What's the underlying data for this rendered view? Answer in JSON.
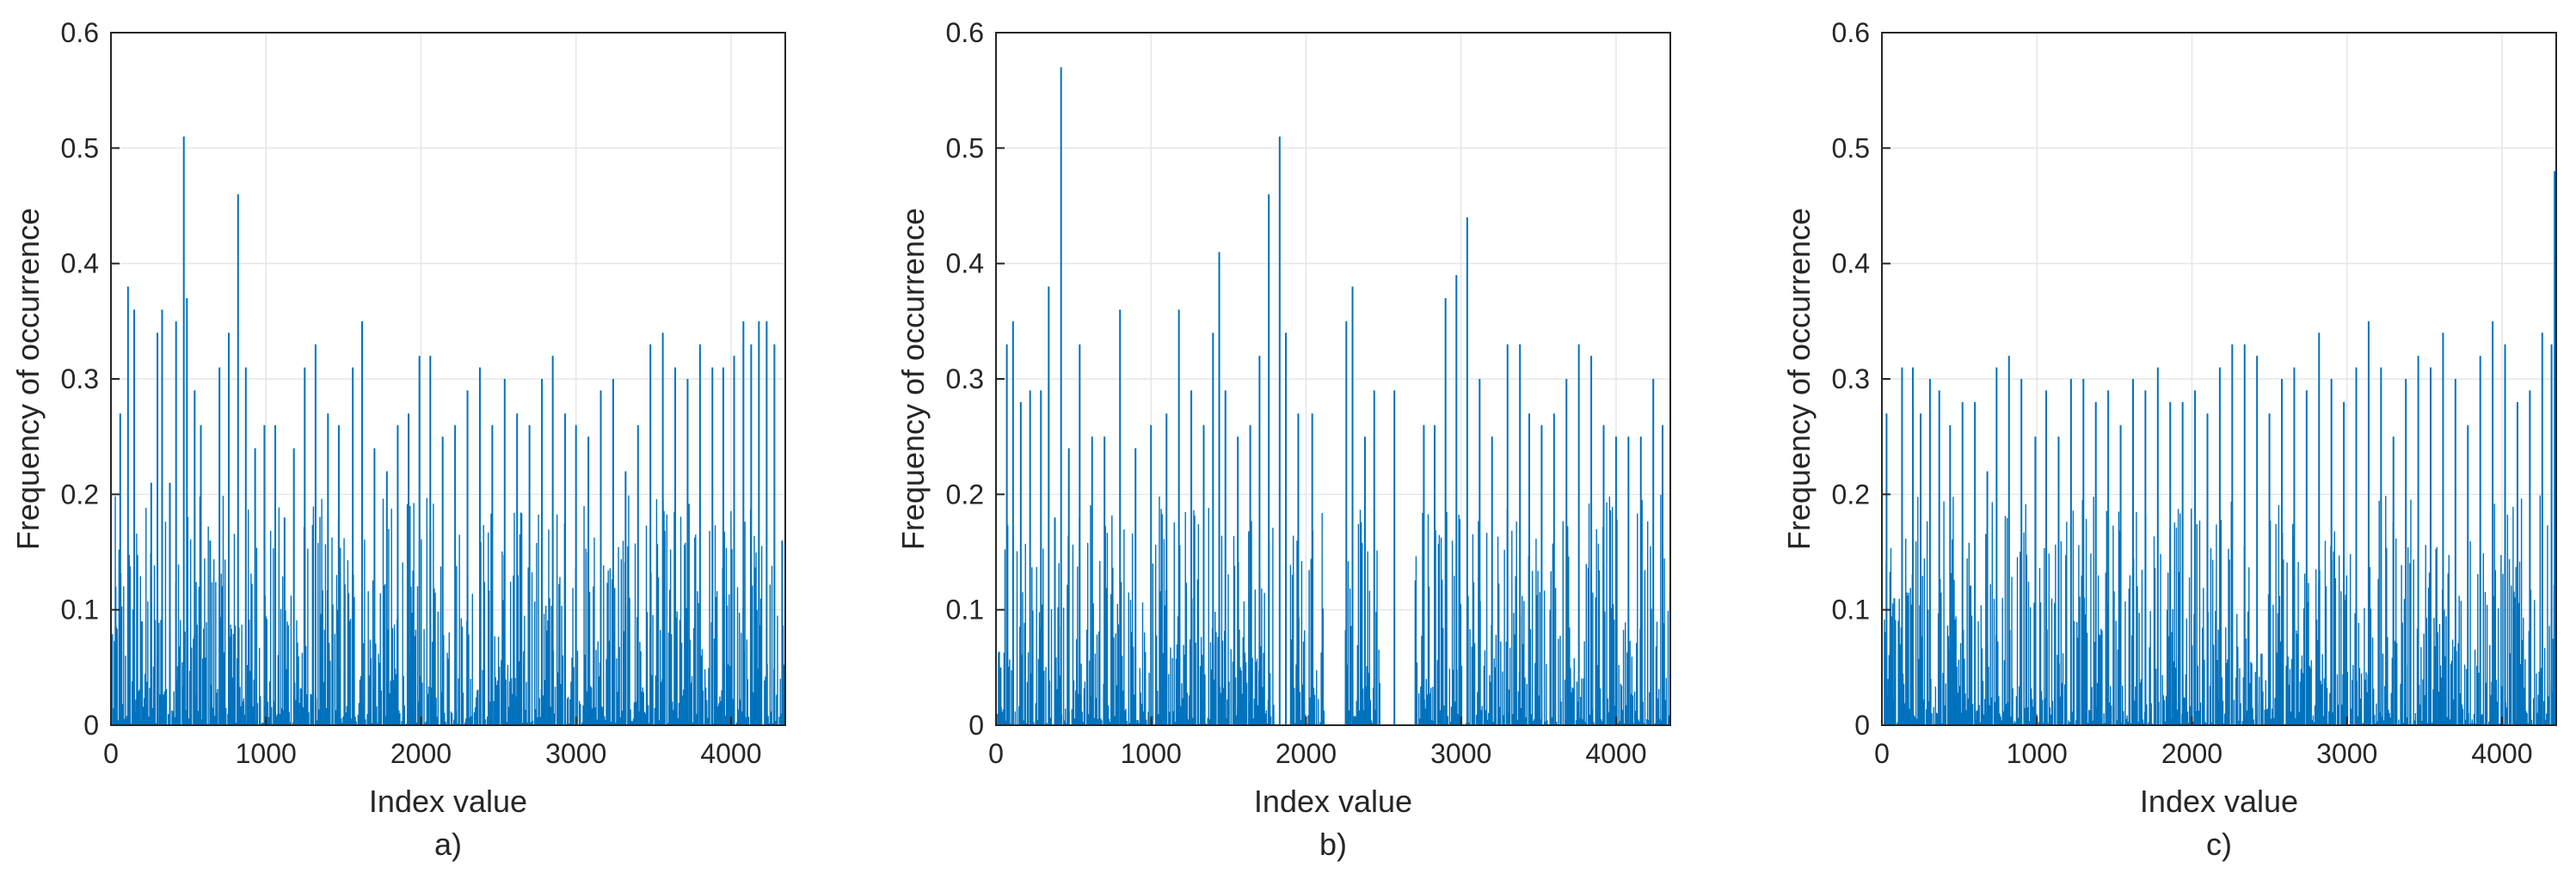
{
  "colors": {
    "bars": "#0072bd",
    "axes": "#262626",
    "grid": "#e6e6e6"
  },
  "chart_data": [
    {
      "type": "bar",
      "caption": "a)",
      "xlabel": "Index value",
      "ylabel": "Frequency of occurrence",
      "xlim": [
        0,
        4350
      ],
      "ylim": [
        0,
        0.6
      ],
      "xticks": [
        "0",
        "1000",
        "2000",
        "3000",
        "4000"
      ],
      "yticks": [
        "0",
        "0.1",
        "0.2",
        "0.3",
        "0.4",
        "0.5",
        "0.6"
      ],
      "grid": true,
      "x": [
        30,
        60,
        110,
        150,
        200,
        260,
        300,
        330,
        380,
        420,
        470,
        490,
        540,
        580,
        640,
        700,
        760,
        820,
        870,
        930,
        990,
        1060,
        1120,
        1180,
        1250,
        1320,
        1400,
        1470,
        1560,
        1620,
        1700,
        1780,
        1850,
        1920,
        1990,
        2060,
        2140,
        2220,
        2300,
        2380,
        2460,
        2540,
        2620,
        2700,
        2780,
        2850,
        2930,
        3000,
        3080,
        3160,
        3240,
        3320,
        3400,
        3480,
        3560,
        3640,
        3720,
        3800,
        3880,
        3950,
        4020,
        4080,
        4130,
        4180,
        4230,
        4280,
        4330
      ],
      "values": [
        0.12,
        0.27,
        0.38,
        0.36,
        0.09,
        0.21,
        0.34,
        0.36,
        0.21,
        0.35,
        0.51,
        0.37,
        0.29,
        0.26,
        0.16,
        0.31,
        0.34,
        0.46,
        0.31,
        0.24,
        0.26,
        0.26,
        0.18,
        0.24,
        0.31,
        0.33,
        0.27,
        0.26,
        0.31,
        0.35,
        0.24,
        0.22,
        0.26,
        0.27,
        0.32,
        0.32,
        0.25,
        0.26,
        0.29,
        0.31,
        0.26,
        0.3,
        0.27,
        0.26,
        0.3,
        0.32,
        0.27,
        0.26,
        0.25,
        0.29,
        0.3,
        0.22,
        0.26,
        0.33,
        0.34,
        0.31,
        0.3,
        0.33,
        0.31,
        0.31,
        0.32,
        0.35,
        0.33,
        0.35,
        0.35,
        0.33,
        0.16
      ]
    },
    {
      "type": "bar",
      "caption": "b)",
      "xlabel": "Index value",
      "ylabel": "Frequency of occurrence",
      "xlim": [
        0,
        4350
      ],
      "ylim": [
        0,
        0.6
      ],
      "xticks": [
        "0",
        "1000",
        "2000",
        "3000",
        "4000"
      ],
      "yticks": [
        "0",
        "0.1",
        "0.2",
        "0.3",
        "0.4",
        "0.5",
        "0.6"
      ],
      "grid": true,
      "x": [
        30,
        70,
        110,
        160,
        220,
        290,
        340,
        380,
        420,
        470,
        540,
        620,
        700,
        800,
        900,
        1000,
        1100,
        1180,
        1260,
        1340,
        1400,
        1440,
        1480,
        1560,
        1640,
        1700,
        1760,
        1830,
        1870,
        1950,
        2040,
        2260,
        2300,
        2380,
        2440,
        2570,
        2760,
        2830,
        2900,
        2970,
        3040,
        3120,
        3200,
        3300,
        3380,
        3440,
        3520,
        3600,
        3680,
        3760,
        3840,
        3920,
        4000,
        4080,
        4160,
        4240,
        4300
      ],
      "values": [
        0.05,
        0.33,
        0.35,
        0.28,
        0.29,
        0.29,
        0.38,
        0.18,
        0.57,
        0.24,
        0.33,
        0.25,
        0.25,
        0.36,
        0.24,
        0.26,
        0.27,
        0.36,
        0.29,
        0.26,
        0.34,
        0.41,
        0.29,
        0.25,
        0.26,
        0.32,
        0.46,
        0.51,
        0.34,
        0.27,
        0.27,
        0.35,
        0.38,
        0.25,
        0.29,
        0.29,
        0.26,
        0.26,
        0.37,
        0.39,
        0.44,
        0.3,
        0.25,
        0.33,
        0.33,
        0.27,
        0.26,
        0.27,
        0.3,
        0.33,
        0.32,
        0.26,
        0.25,
        0.25,
        0.25,
        0.3,
        0.26
      ]
    },
    {
      "type": "bar",
      "caption": "c)",
      "xlabel": "Index value",
      "ylabel": "Frequency of occurrence",
      "xlim": [
        0,
        4350
      ],
      "ylim": [
        0,
        0.6
      ],
      "xticks": [
        "0",
        "1000",
        "2000",
        "3000",
        "4000"
      ],
      "yticks": [
        "0",
        "0.1",
        "0.2",
        "0.3",
        "0.4",
        "0.5",
        "0.6"
      ],
      "grid": true,
      "x": [
        30,
        80,
        130,
        200,
        250,
        310,
        370,
        440,
        520,
        600,
        680,
        740,
        820,
        900,
        990,
        1060,
        1140,
        1220,
        1300,
        1380,
        1460,
        1540,
        1620,
        1700,
        1780,
        1860,
        1940,
        2020,
        2100,
        2180,
        2260,
        2340,
        2420,
        2500,
        2580,
        2660,
        2740,
        2820,
        2900,
        2980,
        3060,
        3140,
        3220,
        3300,
        3380,
        3460,
        3540,
        3620,
        3700,
        3780,
        3860,
        3940,
        4020,
        4100,
        4180,
        4260,
        4320,
        4340
      ],
      "values": [
        0.27,
        0.11,
        0.31,
        0.31,
        0.27,
        0.3,
        0.29,
        0.26,
        0.28,
        0.28,
        0.22,
        0.31,
        0.32,
        0.3,
        0.25,
        0.29,
        0.25,
        0.3,
        0.3,
        0.28,
        0.29,
        0.26,
        0.3,
        0.29,
        0.31,
        0.28,
        0.28,
        0.29,
        0.27,
        0.31,
        0.33,
        0.33,
        0.32,
        0.27,
        0.3,
        0.31,
        0.29,
        0.34,
        0.3,
        0.28,
        0.31,
        0.35,
        0.31,
        0.25,
        0.3,
        0.32,
        0.31,
        0.34,
        0.3,
        0.26,
        0.32,
        0.35,
        0.33,
        0.28,
        0.29,
        0.34,
        0.33,
        0.48
      ]
    }
  ]
}
